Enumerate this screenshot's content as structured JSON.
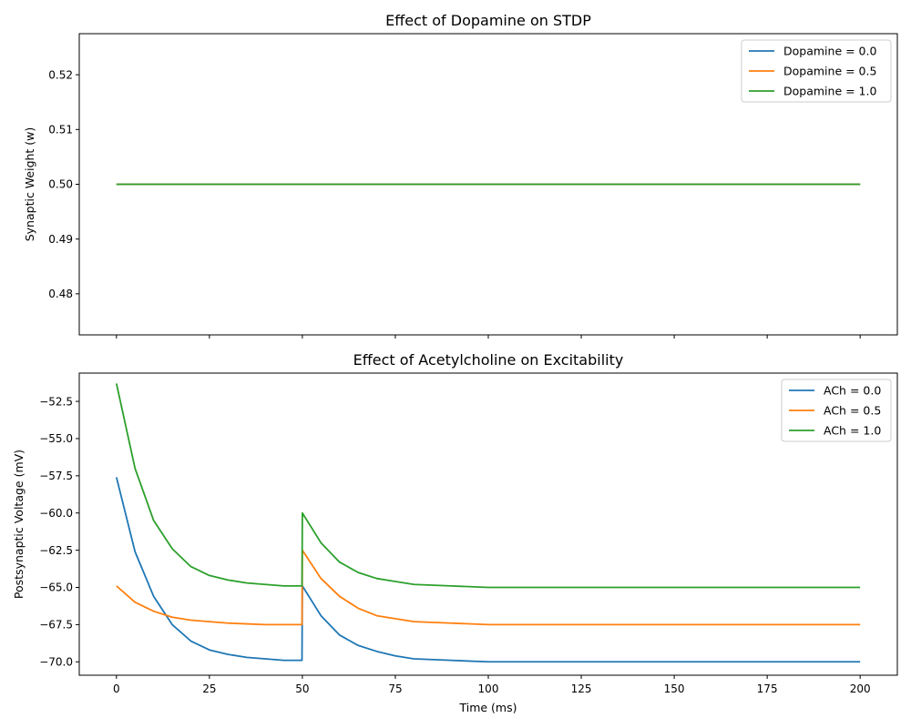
{
  "chart_data": [
    {
      "type": "line",
      "title": "Effect of Dopamine on STDP",
      "xlabel": "",
      "ylabel": "Synaptic Weight (w)",
      "xlim": [
        -10,
        210
      ],
      "ylim": [
        0.4725,
        0.5275
      ],
      "x_ticks": [
        0,
        25,
        50,
        75,
        100,
        125,
        150,
        175,
        200
      ],
      "x_tick_labels_visible": false,
      "y_ticks": [
        0.48,
        0.49,
        0.5,
        0.51,
        0.52
      ],
      "y_tick_labels": [
        "0.48",
        "0.49",
        "0.50",
        "0.51",
        "0.52"
      ],
      "grid": false,
      "legend": {
        "position": "upper-right"
      },
      "series": [
        {
          "name": "Dopamine = 0.0",
          "color": "#1f77b4",
          "x": [
            0,
            200
          ],
          "y": [
            0.5,
            0.5
          ]
        },
        {
          "name": "Dopamine = 0.5",
          "color": "#ff7f0e",
          "x": [
            0,
            200
          ],
          "y": [
            0.5,
            0.5
          ]
        },
        {
          "name": "Dopamine = 1.0",
          "color": "#2ca02c",
          "x": [
            0,
            200
          ],
          "y": [
            0.5,
            0.5
          ]
        }
      ]
    },
    {
      "type": "line",
      "title": "Effect of Acetylcholine on Excitability",
      "xlabel": "Time (ms)",
      "ylabel": "Postsynaptic Voltage (mV)",
      "xlim": [
        -10,
        210
      ],
      "ylim": [
        -70.9,
        -50.6
      ],
      "x_ticks": [
        0,
        25,
        50,
        75,
        100,
        125,
        150,
        175,
        200
      ],
      "x_tick_labels": [
        "0",
        "25",
        "50",
        "75",
        "100",
        "125",
        "150",
        "175",
        "200"
      ],
      "y_ticks": [
        -70,
        -67.5,
        -65,
        -62.5,
        -60,
        -57.5,
        -55,
        -52.5
      ],
      "y_tick_labels": [
        "−70.0",
        "−67.5",
        "−65.0",
        "−62.5",
        "−60.0",
        "−57.5",
        "−55.0",
        "−52.5"
      ],
      "grid": false,
      "legend": {
        "position": "upper-right"
      },
      "series": [
        {
          "name": "ACh = 0.0",
          "color": "#1f77b4",
          "x": [
            0,
            5,
            10,
            15,
            20,
            25,
            30,
            35,
            40,
            45,
            49.9,
            50,
            55,
            60,
            65,
            70,
            75,
            80,
            90,
            100,
            125,
            150,
            175,
            200
          ],
          "y": [
            -57.6,
            -62.6,
            -65.6,
            -67.5,
            -68.6,
            -69.2,
            -69.5,
            -69.7,
            -69.8,
            -69.9,
            -69.9,
            -64.9,
            -66.9,
            -68.2,
            -68.9,
            -69.3,
            -69.6,
            -69.8,
            -69.9,
            -70.0,
            -70.0,
            -70.0,
            -70.0,
            -70.0
          ]
        },
        {
          "name": "ACh = 0.5",
          "color": "#ff7f0e",
          "x": [
            0,
            5,
            10,
            15,
            20,
            25,
            30,
            35,
            40,
            45,
            49.9,
            50,
            55,
            60,
            65,
            70,
            75,
            80,
            90,
            100,
            125,
            150,
            175,
            200
          ],
          "y": [
            -64.9,
            -66.0,
            -66.6,
            -67.0,
            -67.2,
            -67.3,
            -67.4,
            -67.45,
            -67.5,
            -67.5,
            -67.5,
            -62.5,
            -64.4,
            -65.6,
            -66.4,
            -66.9,
            -67.1,
            -67.3,
            -67.4,
            -67.5,
            -67.5,
            -67.5,
            -67.5,
            -67.5
          ]
        },
        {
          "name": "ACh = 1.0",
          "color": "#2ca02c",
          "x": [
            0,
            5,
            10,
            15,
            20,
            25,
            30,
            35,
            40,
            45,
            49.9,
            50,
            55,
            60,
            65,
            70,
            75,
            80,
            90,
            100,
            125,
            150,
            175,
            200
          ],
          "y": [
            -51.3,
            -57.0,
            -60.5,
            -62.4,
            -63.6,
            -64.2,
            -64.5,
            -64.7,
            -64.8,
            -64.9,
            -64.9,
            -60.0,
            -62.0,
            -63.3,
            -64.0,
            -64.4,
            -64.6,
            -64.8,
            -64.9,
            -65.0,
            -65.0,
            -65.0,
            -65.0,
            -65.0
          ]
        }
      ]
    }
  ]
}
